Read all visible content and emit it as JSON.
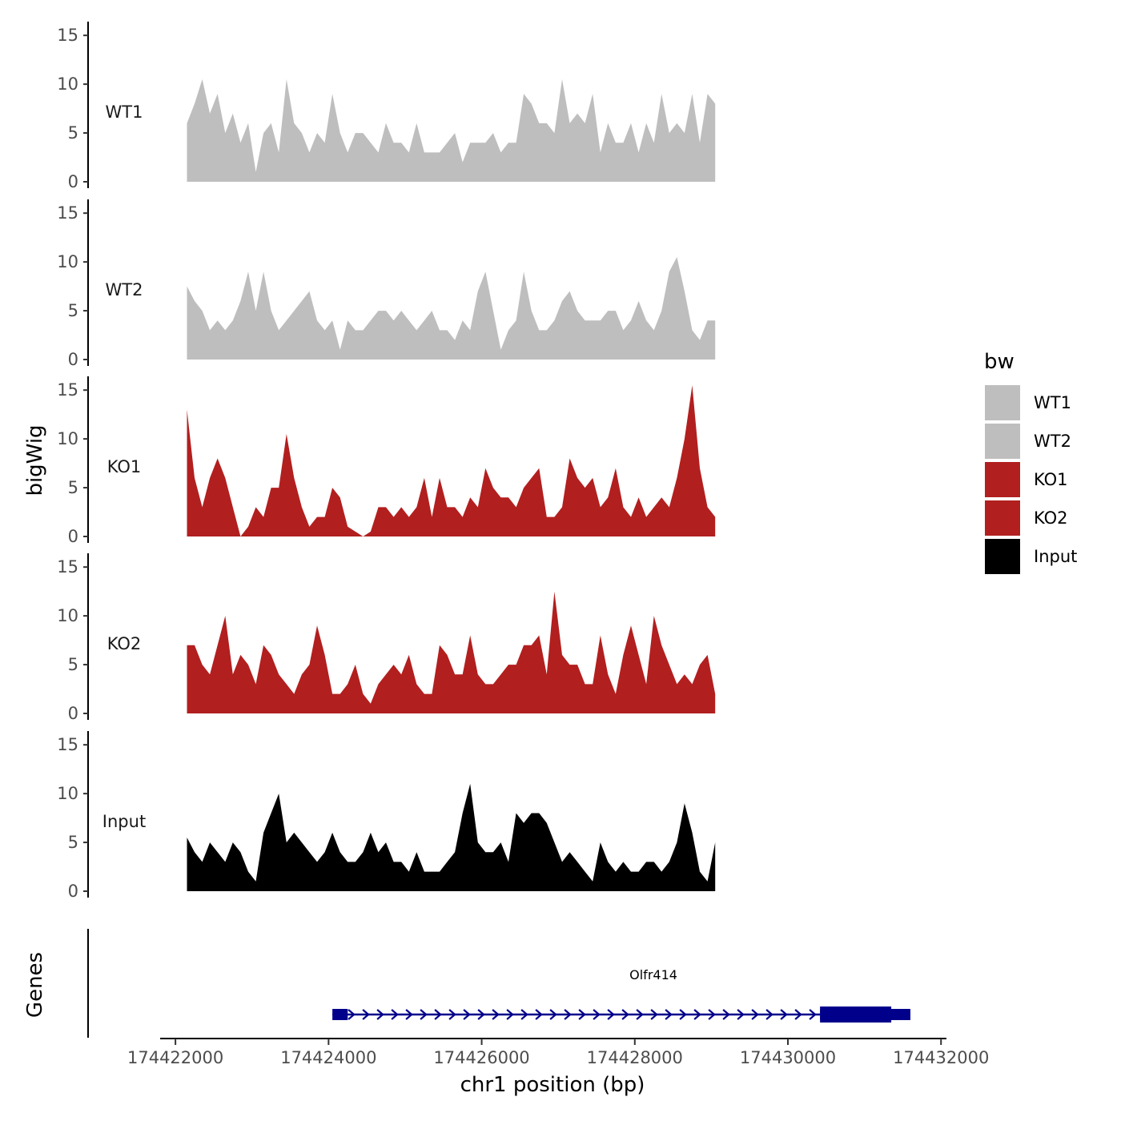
{
  "chart_data": {
    "type": "area",
    "title": "",
    "xlabel": "chr1 position (bp)",
    "ylabel": "bigWig",
    "gene_track_label": "Genes",
    "xlim": [
      174421800,
      174432050
    ],
    "ylim": [
      0,
      16
    ],
    "x_ticks": [
      174422000,
      174424000,
      174426000,
      174428000,
      174430000,
      174432000
    ],
    "x_tick_labels": [
      "174422000",
      "174424000",
      "174426000",
      "174428000",
      "174430000",
      "174432000"
    ],
    "y_ticks": [
      0,
      5,
      10,
      15
    ],
    "y_tick_labels": [
      "0",
      "5",
      "10",
      "15"
    ],
    "x_start": 174422150,
    "x_step": 100,
    "legend": {
      "title": "bw",
      "position": "right",
      "entries": [
        {
          "label": "WT1",
          "color": "#bebebe"
        },
        {
          "label": "WT2",
          "color": "#bebebe"
        },
        {
          "label": "KO1",
          "color": "#b21f1f"
        },
        {
          "label": "KO2",
          "color": "#b21f1f"
        },
        {
          "label": "Input",
          "color": "#000000"
        }
      ]
    },
    "series": [
      {
        "name": "WT1",
        "color": "#bebebe",
        "values": [
          6,
          8,
          10.5,
          7,
          9,
          5,
          7,
          4,
          6,
          1,
          5,
          6,
          3,
          10.5,
          6,
          5,
          3,
          5,
          4,
          9,
          5,
          3,
          5,
          5,
          4,
          3,
          6,
          4,
          4,
          3,
          6,
          3,
          3,
          3,
          4,
          5,
          2,
          4,
          4,
          4,
          5,
          3,
          4,
          4,
          9,
          8,
          6,
          6,
          5,
          10.5,
          6,
          7,
          6,
          9,
          3,
          6,
          4,
          4,
          6,
          3,
          6,
          4,
          9,
          5,
          6,
          5,
          9,
          4,
          9,
          8
        ]
      },
      {
        "name": "WT2",
        "color": "#bebebe",
        "values": [
          7.5,
          6,
          5,
          3,
          4,
          3,
          4,
          6,
          9,
          5,
          9,
          5,
          3,
          4,
          5,
          6,
          7,
          4,
          3,
          4,
          1,
          4,
          3,
          3,
          4,
          5,
          5,
          4,
          5,
          4,
          3,
          4,
          5,
          3,
          3,
          2,
          4,
          3,
          7,
          9,
          5,
          1,
          3,
          4,
          9,
          5,
          3,
          3,
          4,
          6,
          7,
          5,
          4,
          4,
          4,
          5,
          5,
          3,
          4,
          6,
          4,
          3,
          5,
          9,
          10.5,
          7,
          3,
          2,
          4,
          4
        ]
      },
      {
        "name": "KO1",
        "color": "#b21f1f",
        "values": [
          13,
          6,
          3,
          6,
          8,
          6,
          3,
          0,
          1,
          3,
          2,
          5,
          5,
          10.5,
          6,
          3,
          1,
          2,
          2,
          5,
          4,
          1,
          0.5,
          0,
          0.5,
          3,
          3,
          2,
          3,
          2,
          3,
          6,
          2,
          6,
          3,
          3,
          2,
          4,
          3,
          7,
          5,
          4,
          4,
          3,
          5,
          6,
          7,
          2,
          2,
          3,
          8,
          6,
          5,
          6,
          3,
          4,
          7,
          3,
          2,
          4,
          2,
          3,
          4,
          3,
          6,
          10,
          15.5,
          7,
          3,
          2
        ]
      },
      {
        "name": "KO2",
        "color": "#b21f1f",
        "values": [
          7,
          7,
          5,
          4,
          7,
          10,
          4,
          6,
          5,
          3,
          7,
          6,
          4,
          3,
          2,
          4,
          5,
          9,
          6,
          2,
          2,
          3,
          5,
          2,
          1,
          3,
          4,
          5,
          4,
          6,
          3,
          2,
          2,
          7,
          6,
          4,
          4,
          8,
          4,
          3,
          3,
          4,
          5,
          5,
          7,
          7,
          8,
          4,
          12.5,
          6,
          5,
          5,
          3,
          3,
          8,
          4,
          2,
          6,
          9,
          6,
          3,
          10,
          7,
          5,
          3,
          4,
          3,
          5,
          6,
          2
        ]
      },
      {
        "name": "Input",
        "color": "#000000",
        "values": [
          5.5,
          4,
          3,
          5,
          4,
          3,
          5,
          4,
          2,
          1,
          6,
          8,
          10,
          5,
          6,
          5,
          4,
          3,
          4,
          6,
          4,
          3,
          3,
          4,
          6,
          4,
          5,
          3,
          3,
          2,
          4,
          2,
          2,
          2,
          3,
          4,
          8,
          11,
          5,
          4,
          4,
          5,
          3,
          8,
          7,
          8,
          8,
          7,
          5,
          3,
          4,
          3,
          2,
          1,
          5,
          3,
          2,
          3,
          2,
          2,
          3,
          3,
          2,
          3,
          5,
          9,
          6,
          2,
          1,
          5
        ]
      }
    ],
    "gene": {
      "name": "Olfr414",
      "strand": "+",
      "start": 174424050,
      "end": 174431600,
      "color": "#00008b",
      "exons": [
        [
          174424050,
          174424250
        ],
        [
          174430420,
          174431600
        ]
      ],
      "thick_start": 174430420,
      "thick_end": 174431350
    }
  }
}
